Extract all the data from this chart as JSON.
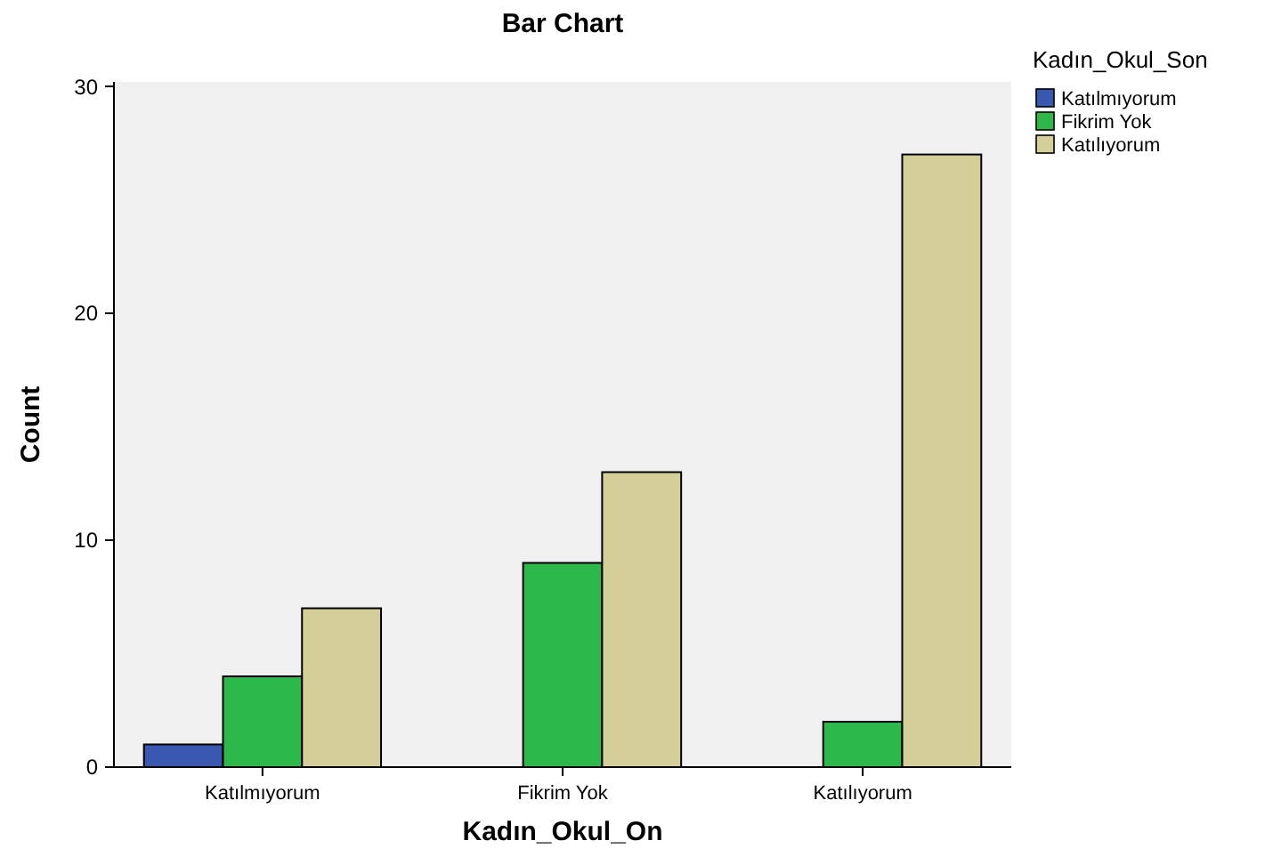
{
  "chart_data": {
    "type": "bar",
    "title": "Bar Chart",
    "xlabel": "Kadın_Okul_On",
    "ylabel": "Count",
    "legend_title": "Kadın_Okul_Son",
    "categories": [
      "Katılmıyorum",
      "Fikrim Yok",
      "Katılıyorum"
    ],
    "series": [
      {
        "name": "Katılmıyorum",
        "color": "#3a58b0",
        "values": [
          1,
          null,
          null
        ]
      },
      {
        "name": "Fikrim Yok",
        "color": "#2db84c",
        "values": [
          4,
          9,
          2
        ]
      },
      {
        "name": "Katılıyorum",
        "color": "#d4cf98",
        "values": [
          7,
          13,
          27
        ]
      }
    ],
    "ylim": [
      0,
      30.2
    ],
    "yticks": [
      0,
      10,
      20,
      30
    ],
    "grid": false,
    "legend": "top right"
  }
}
